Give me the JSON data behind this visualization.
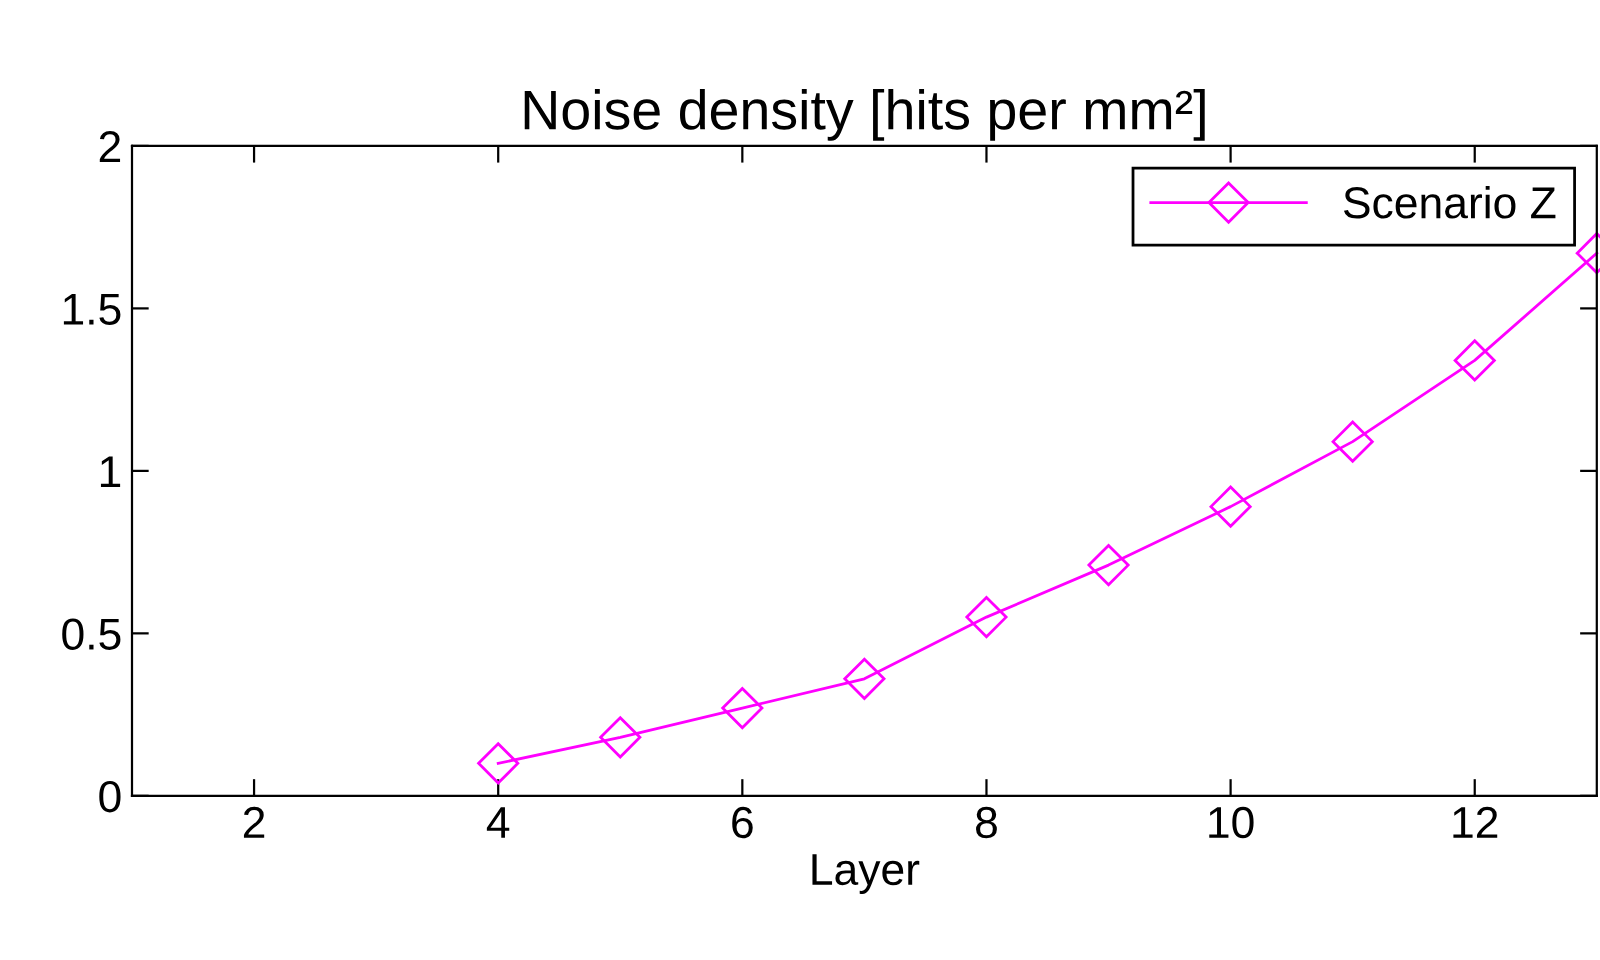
{
  "chart_data": {
    "type": "line",
    "title": "Noise density [hits per mm²]",
    "xlabel": "Layer",
    "x": [
      4,
      5,
      6,
      7,
      8,
      9,
      10,
      11,
      12,
      13
    ],
    "series": [
      {
        "name": "Scenario Z",
        "color": "#ff00ff",
        "values": [
          0.1,
          0.18,
          0.27,
          0.36,
          0.55,
          0.71,
          0.89,
          1.09,
          1.34,
          1.67
        ]
      }
    ],
    "xlim": [
      1,
      13
    ],
    "xticks": [
      2,
      4,
      6,
      8,
      10,
      12
    ],
    "ylim": [
      0,
      2
    ],
    "yticks": [
      0,
      0.5,
      1,
      1.5,
      2
    ],
    "grid": false,
    "legend": "top right",
    "marker": "diamond",
    "line_style": "solid"
  }
}
